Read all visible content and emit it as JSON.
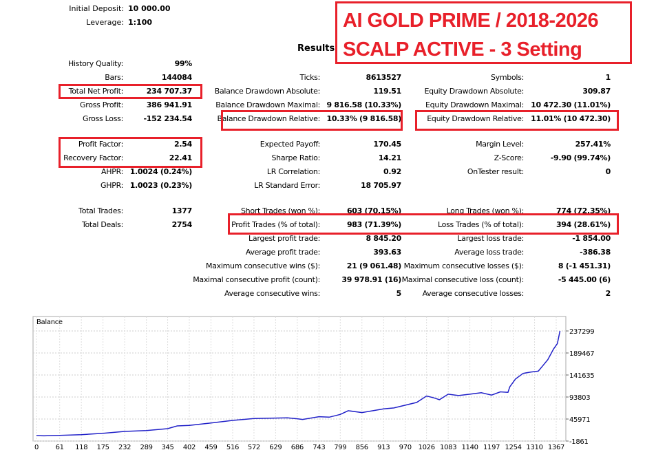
{
  "header": {
    "initial_deposit_label": "Initial Deposit:",
    "initial_deposit_value": "10 000.00",
    "leverage_label": "Leverage:",
    "leverage_value": "1:100",
    "results_title": "Results"
  },
  "overlay_title": {
    "line1": "AI GOLD PRIME / 2018-2026",
    "line2": "SCALP ACTIVE - 3 Setting",
    "color": "#e8202a"
  },
  "sections": [
    {
      "rows": [
        [
          {
            "label": "History Quality:",
            "value": "99%"
          },
          null,
          null
        ],
        [
          {
            "label": "Bars:",
            "value": "144084"
          },
          {
            "label": "Ticks:",
            "value": "8613527"
          },
          {
            "label": "Symbols:",
            "value": "1"
          }
        ],
        [
          {
            "label": "Total Net Profit:",
            "value": "234 707.37",
            "highlight": true
          },
          {
            "label": "Balance Drawdown Absolute:",
            "value": "119.51"
          },
          {
            "label": "Equity Drawdown Absolute:",
            "value": "309.87"
          }
        ],
        [
          {
            "label": "Gross Profit:",
            "value": "386 941.91"
          },
          {
            "label": "Balance Drawdown Maximal:",
            "value": "9 816.58 (10.33%)"
          },
          {
            "label": "Equity Drawdown Maximal:",
            "value": "10 472.30 (11.01%)"
          }
        ],
        [
          {
            "label": "Gross Loss:",
            "value": "-152 234.54"
          },
          {
            "label": "Balance Drawdown Relative:",
            "value": "10.33% (9 816.58)",
            "highlight": true
          },
          {
            "label": "Equity Drawdown Relative:",
            "value": "11.01% (10 472.30)",
            "highlight": true
          }
        ]
      ]
    },
    {
      "rows": [
        [
          {
            "label": "Profit Factor:",
            "value": "2.54",
            "highlight": true
          },
          {
            "label": "Expected Payoff:",
            "value": "170.45"
          },
          {
            "label": "Margin Level:",
            "value": "257.41%"
          }
        ],
        [
          {
            "label": "Recovery Factor:",
            "value": "22.41",
            "highlight": true
          },
          {
            "label": "Sharpe Ratio:",
            "value": "14.21"
          },
          {
            "label": "Z-Score:",
            "value": "-9.90 (99.74%)"
          }
        ],
        [
          {
            "label": "AHPR:",
            "value": "1.0024 (0.24%)"
          },
          {
            "label": "LR Correlation:",
            "value": "0.92"
          },
          {
            "label": "OnTester result:",
            "value": "0"
          }
        ],
        [
          {
            "label": "GHPR:",
            "value": "1.0023 (0.23%)"
          },
          {
            "label": "LR Standard Error:",
            "value": "18 705.97"
          },
          null
        ]
      ]
    },
    {
      "rows": [
        [
          {
            "label": "Total Trades:",
            "value": "1377"
          },
          {
            "label": "Short Trades (won %):",
            "value": "603 (70.15%)"
          },
          {
            "label": "Long Trades (won %):",
            "value": "774 (72.35%)"
          }
        ],
        [
          {
            "label": "Total Deals:",
            "value": "2754"
          },
          {
            "label": "Profit Trades (% of total):",
            "value": "983 (71.39%)",
            "highlight": true
          },
          {
            "label": "Loss Trades (% of total):",
            "value": "394 (28.61%)",
            "highlight": true
          }
        ],
        [
          null,
          {
            "label": "Largest profit trade:",
            "value": "8 845.20"
          },
          {
            "label": "Largest loss trade:",
            "value": "-1 854.00"
          }
        ],
        [
          null,
          {
            "label": "Average profit trade:",
            "value": "393.63"
          },
          {
            "label": "Average loss trade:",
            "value": "-386.38"
          }
        ],
        [
          null,
          {
            "label": "Maximum consecutive wins ($):",
            "value": "21 (9 061.48)"
          },
          {
            "label": "Maximum consecutive losses ($):",
            "value": "8 (-1 451.31)"
          }
        ],
        [
          null,
          {
            "label": "Maximal consecutive profit (count):",
            "value": "39 978.91 (16)"
          },
          {
            "label": "Maximal consecutive loss (count):",
            "value": "-5 445.00 (6)"
          }
        ],
        [
          null,
          {
            "label": "Average consecutive wins:",
            "value": "5"
          },
          {
            "label": "Average consecutive losses:",
            "value": "2"
          }
        ]
      ]
    }
  ],
  "chart_data": {
    "type": "line",
    "title": "Balance",
    "line_color": "#2020c8",
    "grid": true,
    "ylim": [
      -1861,
      237299
    ],
    "xlim": [
      0,
      1377
    ],
    "y_ticks": [
      237299,
      189467,
      141635,
      93803,
      45971,
      -1861
    ],
    "x_ticks": [
      0,
      61,
      118,
      175,
      232,
      289,
      345,
      402,
      459,
      516,
      572,
      629,
      686,
      743,
      799,
      856,
      913,
      970,
      1026,
      1083,
      1140,
      1197,
      1254,
      1310,
      1367
    ],
    "series": [
      {
        "x": [
          0,
          20,
          61,
          118,
          175,
          232,
          289,
          345,
          370,
          402,
          459,
          516,
          572,
          629,
          660,
          686,
          700,
          743,
          770,
          799,
          820,
          856,
          913,
          940,
          970,
          1000,
          1026,
          1045,
          1060,
          1083,
          1110,
          1140,
          1170,
          1197,
          1220,
          1240,
          1245,
          1260,
          1280,
          1300,
          1320,
          1330,
          1345,
          1360,
          1370,
          1377
        ],
        "y": [
          10000,
          9500,
          10500,
          12000,
          15000,
          19000,
          21000,
          25000,
          31000,
          32000,
          37500,
          43000,
          47000,
          48000,
          48500,
          46500,
          45000,
          51000,
          50000,
          56000,
          64000,
          60000,
          68000,
          70000,
          76000,
          82000,
          96000,
          92000,
          88000,
          100000,
          97000,
          100000,
          103000,
          98000,
          105000,
          104000,
          116000,
          133000,
          145000,
          148000,
          150000,
          160000,
          175000,
          198000,
          210000,
          237299
        ]
      }
    ]
  }
}
